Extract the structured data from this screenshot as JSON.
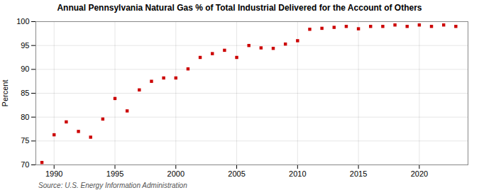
{
  "chart_data": {
    "type": "scatter",
    "title": "Annual Pennsylvania Natural Gas % of Total Industrial Delivered for the Account of Others",
    "ylabel": "Percent",
    "source": "Source: U.S. Energy Information Administration",
    "x": [
      1989,
      1990,
      1991,
      1992,
      1993,
      1994,
      1995,
      1996,
      1997,
      1998,
      1999,
      2000,
      2001,
      2002,
      2003,
      2004,
      2005,
      2006,
      2007,
      2008,
      2009,
      2010,
      2011,
      2012,
      2013,
      2014,
      2015,
      2016,
      2017,
      2018,
      2019,
      2020,
      2021,
      2022,
      2023
    ],
    "values": [
      70.5,
      76.3,
      79.0,
      77.0,
      75.8,
      79.6,
      83.9,
      81.3,
      85.7,
      87.5,
      88.2,
      88.2,
      90.1,
      92.5,
      93.3,
      94.0,
      92.5,
      95.0,
      94.5,
      94.4,
      95.3,
      96.0,
      98.4,
      98.6,
      98.8,
      99.0,
      98.5,
      99.0,
      99.0,
      99.3,
      99.0,
      99.3,
      99.0,
      99.3,
      99.0
    ],
    "color": "#cc0000",
    "marker": "square",
    "xlim": [
      1988.5,
      2024.0
    ],
    "ylim": [
      70,
      100
    ],
    "xticks": [
      1990,
      1995,
      2000,
      2005,
      2010,
      2015,
      2020
    ],
    "yticks": [
      70,
      75,
      80,
      85,
      90,
      95,
      100
    ],
    "grid": true
  }
}
